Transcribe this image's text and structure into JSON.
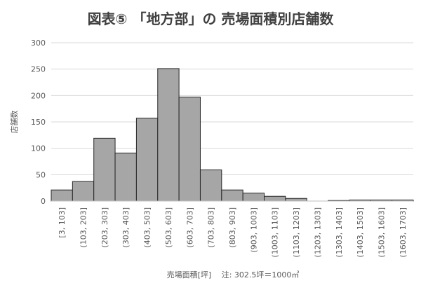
{
  "chart_data": {
    "type": "bar",
    "title": "図表⑤ 「地方部」の 売場面積別店舗数",
    "xlabel": "売場面積[坪]　 注: 302.5坪＝1000㎡",
    "ylabel": "店舗数",
    "ylim": [
      0,
      300
    ],
    "yticks": [
      "0",
      "50",
      "100",
      "150",
      "200",
      "250",
      "300"
    ],
    "grid": true,
    "categories": [
      "[3, 103]",
      "(103, 203]",
      "(203, 303]",
      "(303, 403]",
      "(403, 503]",
      "(503, 603]",
      "(603, 703]",
      "(703, 803]",
      "(803, 903]",
      "(903, 1003]",
      "(1003, 1103]",
      "(1103, 1203]",
      "(1203, 1303]",
      "(1303, 1403]",
      "(1403, 1503]",
      "(1503, 1603]",
      "(1603, 1703]"
    ],
    "values": [
      21,
      37,
      119,
      91,
      157,
      251,
      197,
      59,
      21,
      15,
      9,
      5,
      0,
      1,
      2,
      2,
      2
    ]
  }
}
